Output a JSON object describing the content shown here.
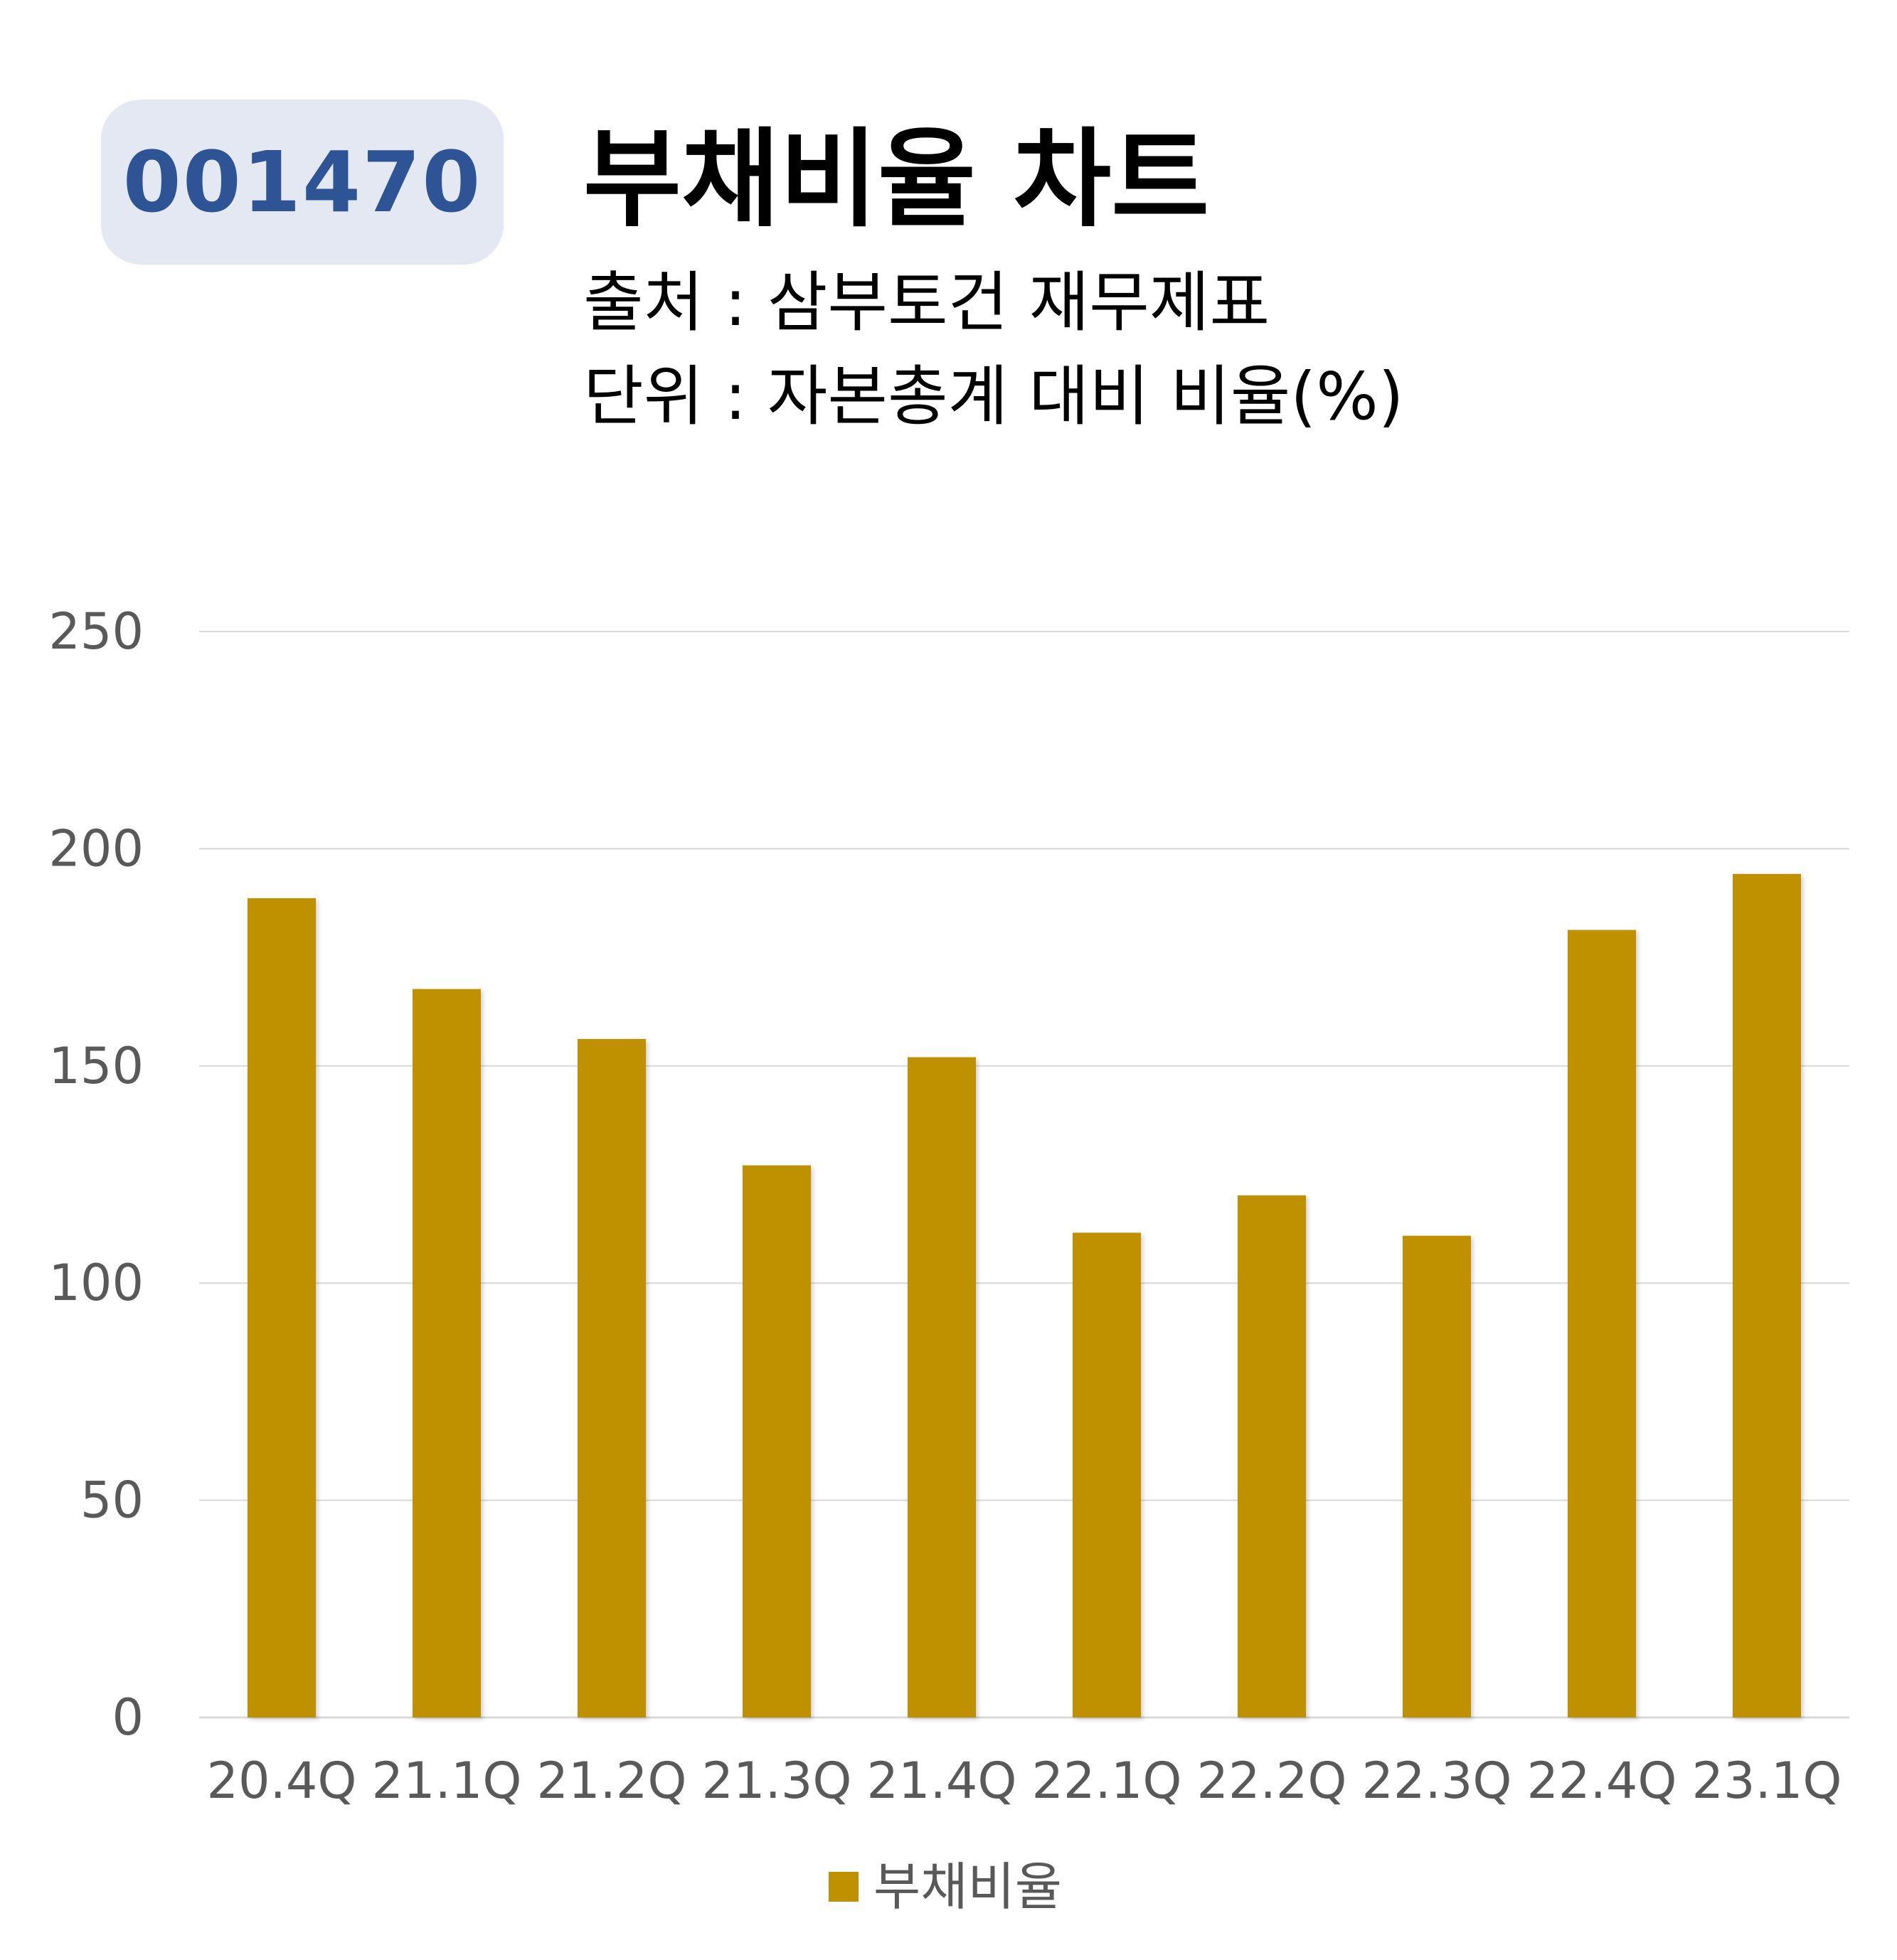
{
  "header": {
    "code": "001470",
    "title": "부채비율 차트",
    "source": "출처 : 삼부토건 재무제표",
    "unit": "단위 : 자본총계 대비 비율(%)"
  },
  "colors": {
    "bar": "#bf9000",
    "badge_bg": "#e3e8f3",
    "badge_text": "#2e5496",
    "grid": "#d9d9d9",
    "tick_text": "#595959"
  },
  "chart_data": {
    "type": "bar",
    "categories": [
      "20.4Q",
      "21.1Q",
      "21.2Q",
      "21.3Q",
      "21.4Q",
      "22.1Q",
      "22.2Q",
      "22.3Q",
      "22.4Q",
      "23.1Q"
    ],
    "series": [
      {
        "name": "부채비율",
        "values": [
          188.6,
          167.7,
          156.2,
          127.1,
          152.0,
          111.6,
          120.2,
          110.9,
          181.3,
          194.2
        ]
      }
    ],
    "yticks": [
      "0",
      "50",
      "100",
      "150",
      "200",
      "250"
    ],
    "ylim": [
      0,
      250
    ],
    "grid": true,
    "legend": "bottom"
  }
}
